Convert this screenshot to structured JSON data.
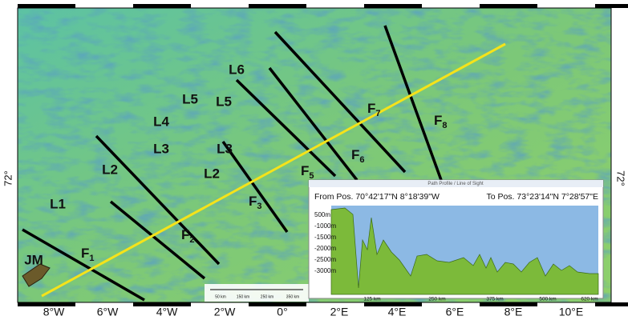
{
  "map": {
    "lat_labels": [
      "72°",
      "72°"
    ],
    "lon_labels": [
      "8°W",
      "6°W",
      "4°W",
      "2°W",
      "0°",
      "2°E",
      "4°E",
      "6°E",
      "8°E",
      "10°E"
    ],
    "labels": [
      "L6",
      "L5",
      "L5",
      "L4",
      "L3",
      "L3",
      "L2",
      "L2",
      "L1"
    ],
    "faults": [
      {
        "letter": "F",
        "sub": "7"
      },
      {
        "letter": "F",
        "sub": "8"
      },
      {
        "letter": "F",
        "sub": "6"
      },
      {
        "letter": "F",
        "sub": "5"
      },
      {
        "letter": "F",
        "sub": "3"
      },
      {
        "letter": "F",
        "sub": "2"
      },
      {
        "letter": "F",
        "sub": "1"
      }
    ],
    "island": "JM",
    "scale_bar": [
      "50 km",
      "150 km",
      "250 km",
      "350 km"
    ]
  },
  "profile": {
    "window_title": "Path Profile / Line of Sight",
    "from": "From Pos. 70°42'17\"N 8°18'39\"W",
    "to": "To Pos. 73°23'14\"N 7°28'57\"E",
    "depth_labels": [
      "500m",
      "-1000m",
      "-1500m",
      "-2000m",
      "-2500m",
      "-3000m"
    ],
    "distance_labels": [
      "125 km",
      "250 km",
      "375 km",
      "500 km",
      "620 km"
    ]
  }
}
